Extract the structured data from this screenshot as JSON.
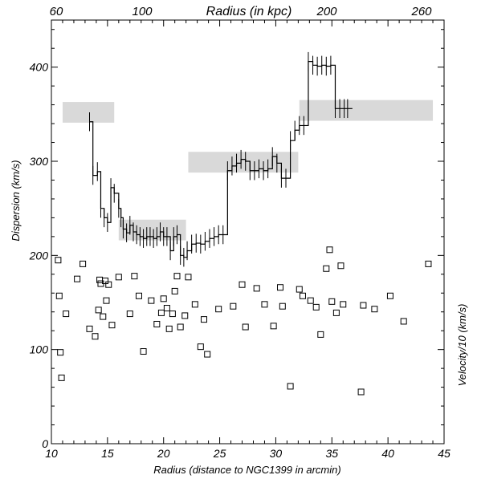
{
  "chart_data": {
    "type": "line",
    "xlabel": "Radius (distance to NGC1399 in arcmin)",
    "top_xlabel": "Radius (in kpc)",
    "ylabel": "Dispersion  (km/s)",
    "right_ylabel": "Velocity/10  (km/s)",
    "xlim": [
      10,
      45
    ],
    "ylim": [
      0,
      450
    ],
    "x_ticks": [
      10,
      15,
      20,
      25,
      30,
      35,
      40,
      45
    ],
    "y_ticks": [
      0,
      100,
      200,
      300,
      400
    ],
    "top_x_ticks": [
      "60",
      "100",
      "200",
      "260"
    ],
    "colors": {
      "band": "#d9d9d9",
      "line": "#000000",
      "marker": "#000000"
    },
    "bands": [
      {
        "x": [
          11.0,
          15.6
        ],
        "y": [
          341,
          363
        ]
      },
      {
        "x": [
          16.0,
          22.0
        ],
        "y": [
          216,
          238
        ]
      },
      {
        "x": [
          22.2,
          32.0
        ],
        "y": [
          288,
          310
        ]
      },
      {
        "x": [
          32.1,
          44.0
        ],
        "y": [
          343,
          365
        ]
      }
    ],
    "dispersion_profile": {
      "x": [
        13.4,
        13.7,
        14.1,
        14.4,
        14.7,
        15.0,
        15.3,
        15.6,
        16.0,
        16.2,
        16.4,
        16.7,
        17.0,
        17.3,
        17.6,
        17.9,
        18.2,
        18.5,
        18.8,
        19.1,
        19.4,
        19.7,
        20.0,
        20.3,
        20.6,
        20.9,
        21.2,
        21.5,
        21.8,
        22.1,
        22.5,
        22.9,
        23.3,
        23.7,
        24.1,
        24.5,
        24.9,
        25.3,
        25.7,
        26.1,
        26.5,
        26.9,
        27.3,
        27.7,
        28.1,
        28.5,
        28.9,
        29.3,
        29.7,
        30.1,
        30.5,
        30.9,
        31.3,
        31.7,
        32.1,
        32.5,
        32.9,
        33.3,
        33.7,
        34.1,
        34.5,
        34.9,
        35.3,
        35.7,
        36.1,
        36.4
      ],
      "y": [
        342,
        285,
        289,
        250,
        240,
        235,
        272,
        266,
        250,
        240,
        228,
        224,
        232,
        225,
        222,
        220,
        218,
        220,
        220,
        218,
        220,
        225,
        220,
        220,
        205,
        220,
        222,
        200,
        198,
        205,
        212,
        213,
        212,
        215,
        218,
        220,
        222,
        222,
        290,
        295,
        298,
        302,
        300,
        290,
        290,
        292,
        290,
        292,
        305,
        298,
        282,
        282,
        322,
        333,
        338,
        338,
        406,
        402,
        401,
        402,
        401,
        402,
        356,
        356,
        356,
        356
      ],
      "error": 10
    },
    "velocity_points": {
      "x": [
        10.6,
        10.7,
        10.8,
        10.9,
        11.3,
        12.3,
        12.8,
        13.4,
        13.9,
        14.2,
        14.3,
        14.4,
        14.6,
        14.8,
        14.9,
        15.1,
        15.4,
        16.0,
        17.0,
        17.4,
        17.8,
        18.2,
        18.9,
        19.4,
        19.8,
        20.0,
        20.3,
        20.5,
        20.8,
        21.0,
        21.2,
        21.5,
        21.9,
        22.2,
        22.8,
        23.3,
        23.6,
        23.9,
        24.9,
        26.2,
        27.0,
        27.3,
        28.3,
        29.0,
        29.8,
        30.4,
        30.6,
        31.3,
        32.1,
        32.4,
        33.1,
        33.6,
        34.0,
        34.5,
        34.8,
        35.0,
        35.4,
        35.8,
        36.0,
        37.6,
        37.8,
        38.8,
        40.2,
        41.4,
        43.6
      ],
      "y": [
        195,
        157,
        97,
        70,
        138,
        175,
        191,
        122,
        114,
        142,
        174,
        170,
        135,
        173,
        152,
        169,
        126,
        177,
        138,
        178,
        157,
        98,
        152,
        127,
        139,
        154,
        144,
        122,
        138,
        162,
        178,
        124,
        136,
        177,
        148,
        103,
        132,
        95,
        143,
        146,
        169,
        124,
        165,
        148,
        125,
        166,
        146,
        61,
        164,
        157,
        152,
        145,
        116,
        186,
        206,
        151,
        139,
        189,
        148,
        55,
        147,
        143,
        157,
        130,
        191
      ]
    }
  }
}
